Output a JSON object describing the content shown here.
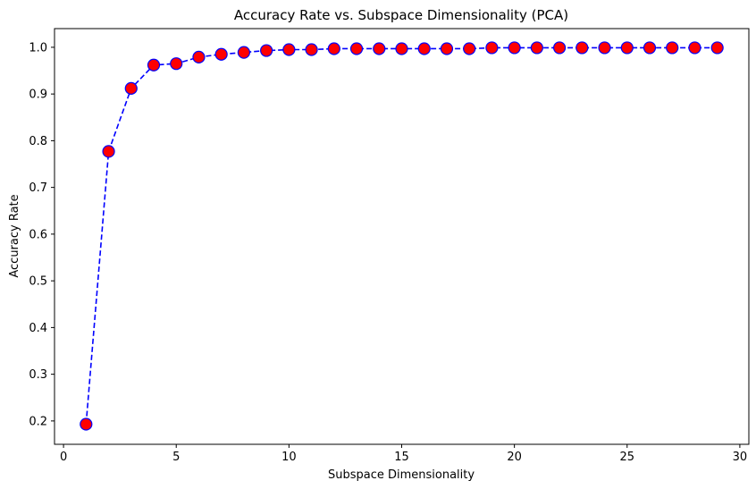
{
  "chart_data": {
    "type": "line",
    "title": "Accuracy Rate vs. Subspace Dimensionality (PCA)",
    "xlabel": "Subspace Dimensionality",
    "ylabel": "Accuracy Rate",
    "xlim": [
      -0.4,
      30.4
    ],
    "ylim": [
      0.15,
      1.04
    ],
    "xticks": [
      0,
      5,
      10,
      15,
      20,
      25,
      30
    ],
    "xtick_labels": [
      "0",
      "5",
      "10",
      "15",
      "20",
      "25",
      "30"
    ],
    "yticks": [
      0.2,
      0.3,
      0.4,
      0.5,
      0.6,
      0.7,
      0.8,
      0.9,
      1.0
    ],
    "ytick_labels": [
      "0.2",
      "0.3",
      "0.4",
      "0.5",
      "0.6",
      "0.7",
      "0.8",
      "0.9",
      "1.0"
    ],
    "grid": false,
    "legend": false,
    "series": [
      {
        "line_color": "#0000ff",
        "line_style": "dashed",
        "marker": "circle",
        "marker_face_color": "#ff0000",
        "marker_edge_color": "#0000ff",
        "x": [
          1,
          2,
          3,
          4,
          5,
          6,
          7,
          8,
          9,
          10,
          11,
          12,
          13,
          14,
          15,
          16,
          17,
          18,
          19,
          20,
          21,
          22,
          23,
          24,
          25,
          26,
          27,
          28,
          29
        ],
        "values": [
          0.193,
          0.777,
          0.912,
          0.962,
          0.965,
          0.979,
          0.985,
          0.989,
          0.993,
          0.995,
          0.995,
          0.997,
          0.997,
          0.997,
          0.997,
          0.997,
          0.997,
          0.997,
          0.999,
          0.999,
          0.999,
          0.999,
          0.999,
          0.999,
          0.999,
          0.999,
          0.999,
          0.999,
          0.999
        ]
      }
    ]
  }
}
